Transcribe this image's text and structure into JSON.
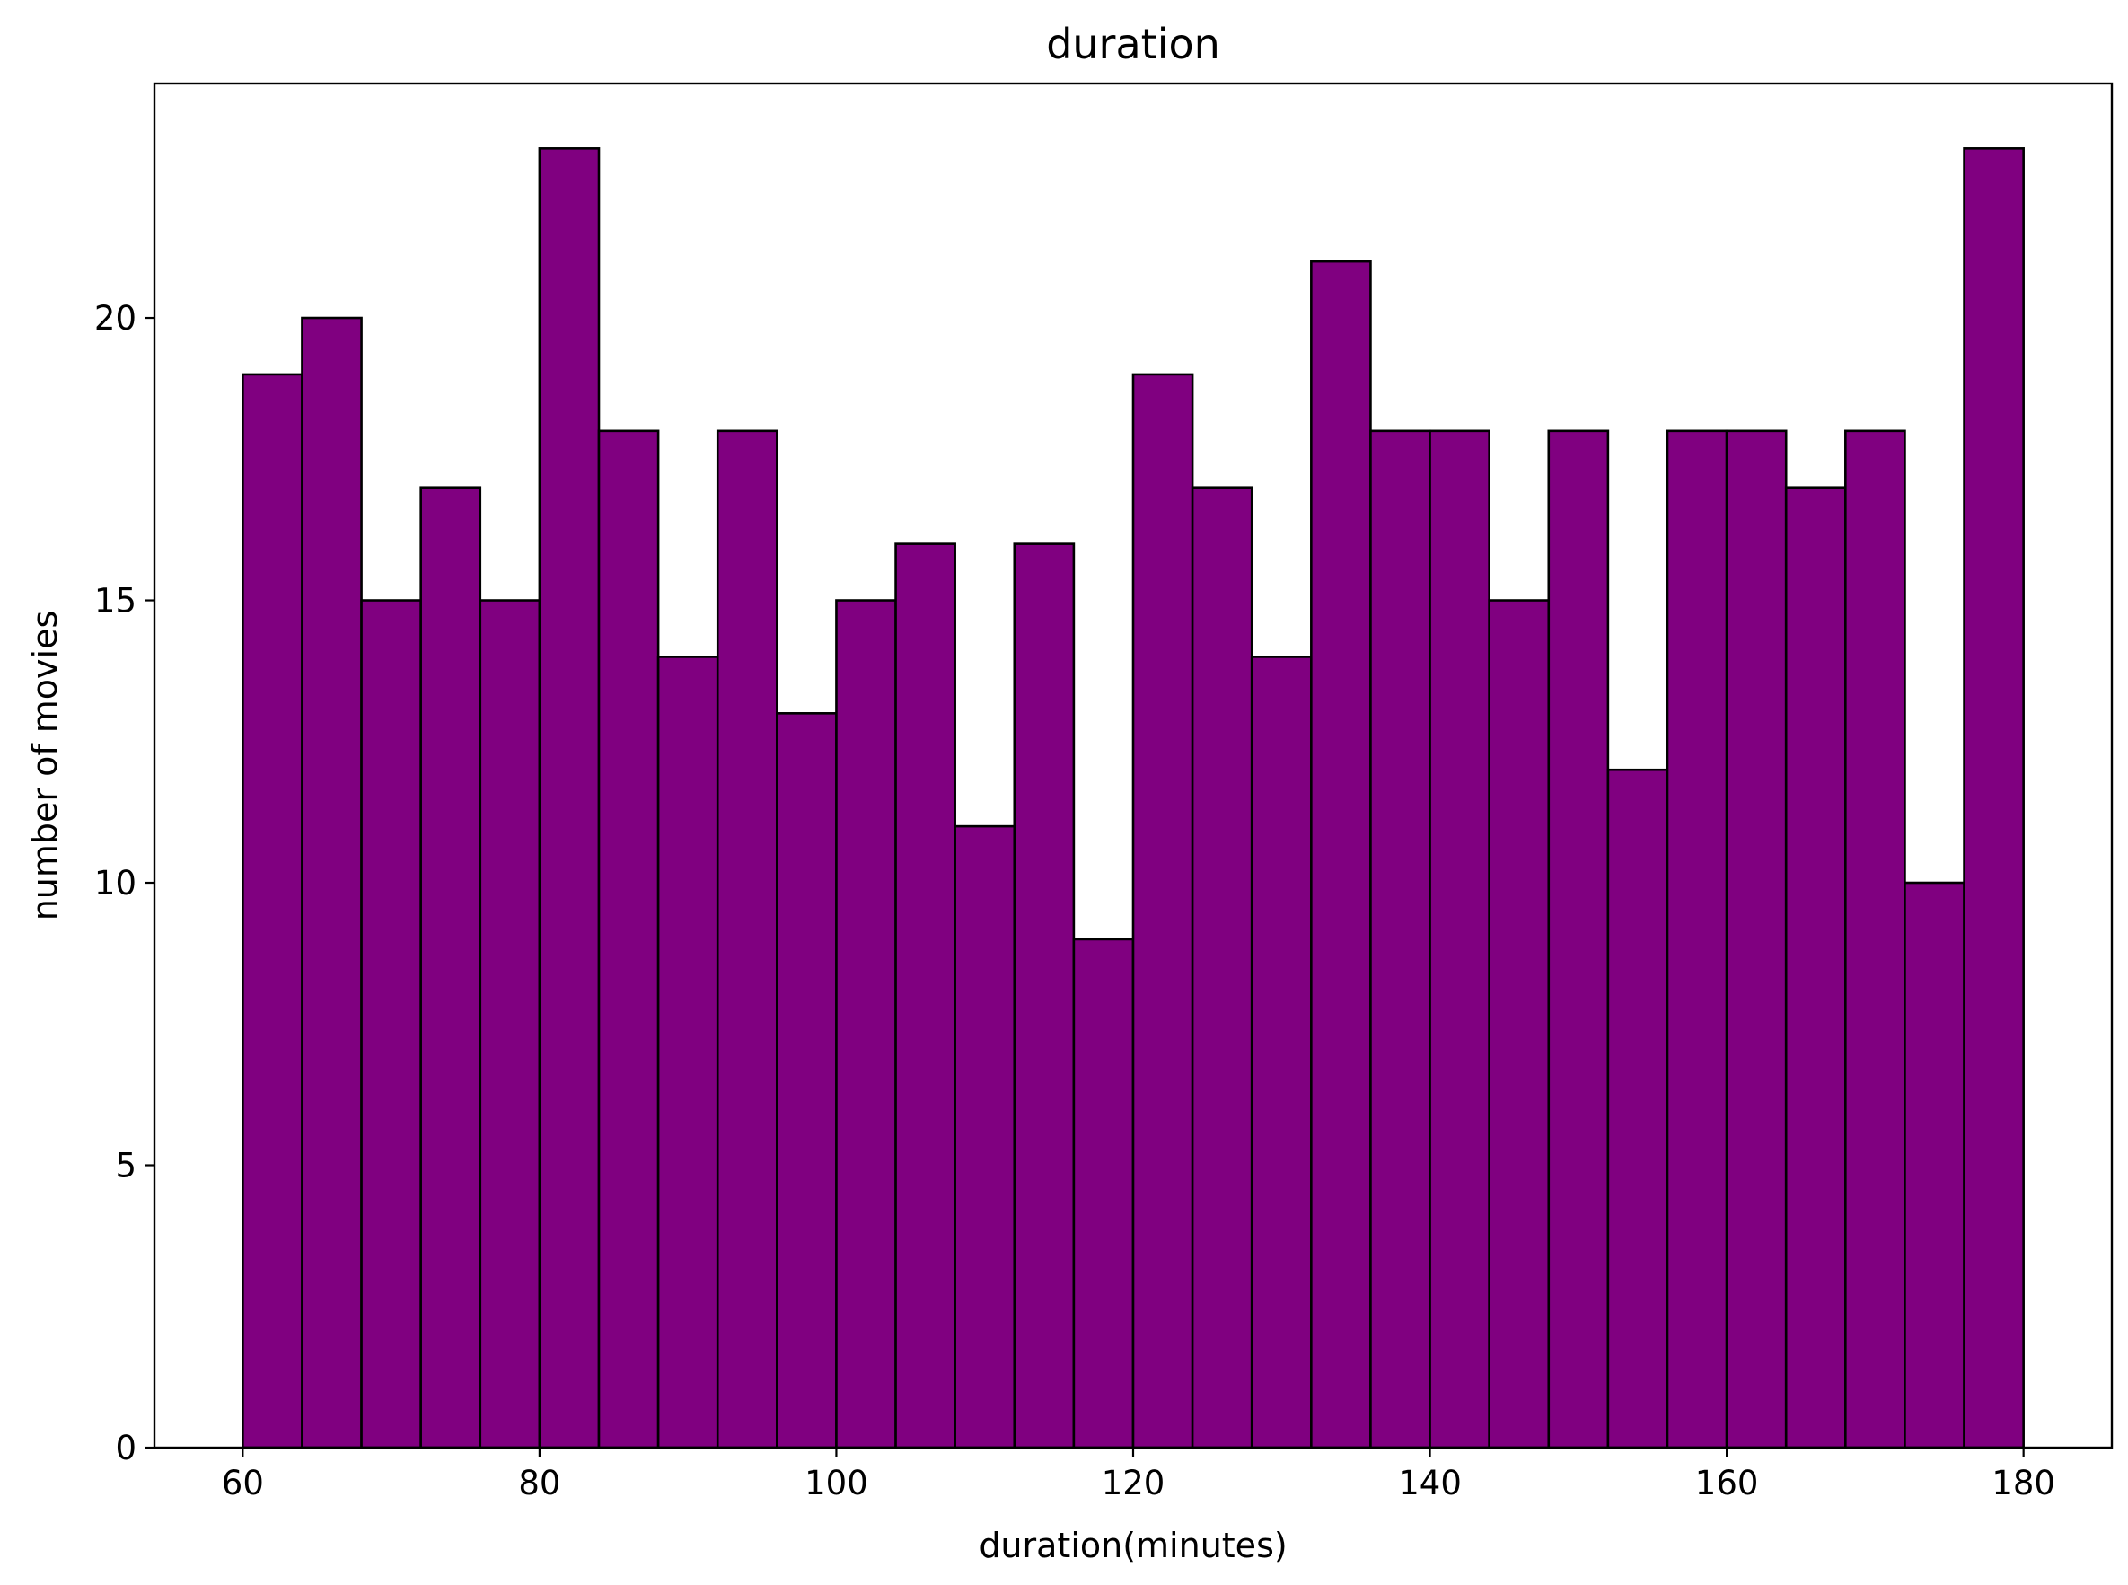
{
  "chart_data": {
    "type": "bar",
    "title": "duration",
    "xlabel": "duration(minutes)",
    "ylabel": "number of movies",
    "bin_width": 4,
    "bin_edges": [
      60,
      64,
      68,
      72,
      76,
      80,
      84,
      88,
      92,
      96,
      100,
      104,
      108,
      112,
      116,
      120,
      124,
      128,
      132,
      136,
      140,
      144,
      148,
      152,
      156,
      160,
      164,
      168,
      172,
      176,
      180
    ],
    "values": [
      19,
      20,
      15,
      17,
      15,
      23,
      18,
      14,
      18,
      13,
      15,
      16,
      11,
      16,
      9,
      19,
      17,
      14,
      21,
      18,
      18,
      15,
      18,
      12,
      18,
      18,
      17,
      18,
      10,
      23
    ],
    "xlim": [
      54.05,
      185.95
    ],
    "ylim": [
      0,
      24.15
    ],
    "xticks": [
      60,
      80,
      100,
      120,
      140,
      160,
      180
    ],
    "yticks": [
      0,
      5,
      10,
      15,
      20
    ],
    "bar_color": "#800080",
    "edge_color": "#000000",
    "grid": false,
    "legend": "none"
  }
}
